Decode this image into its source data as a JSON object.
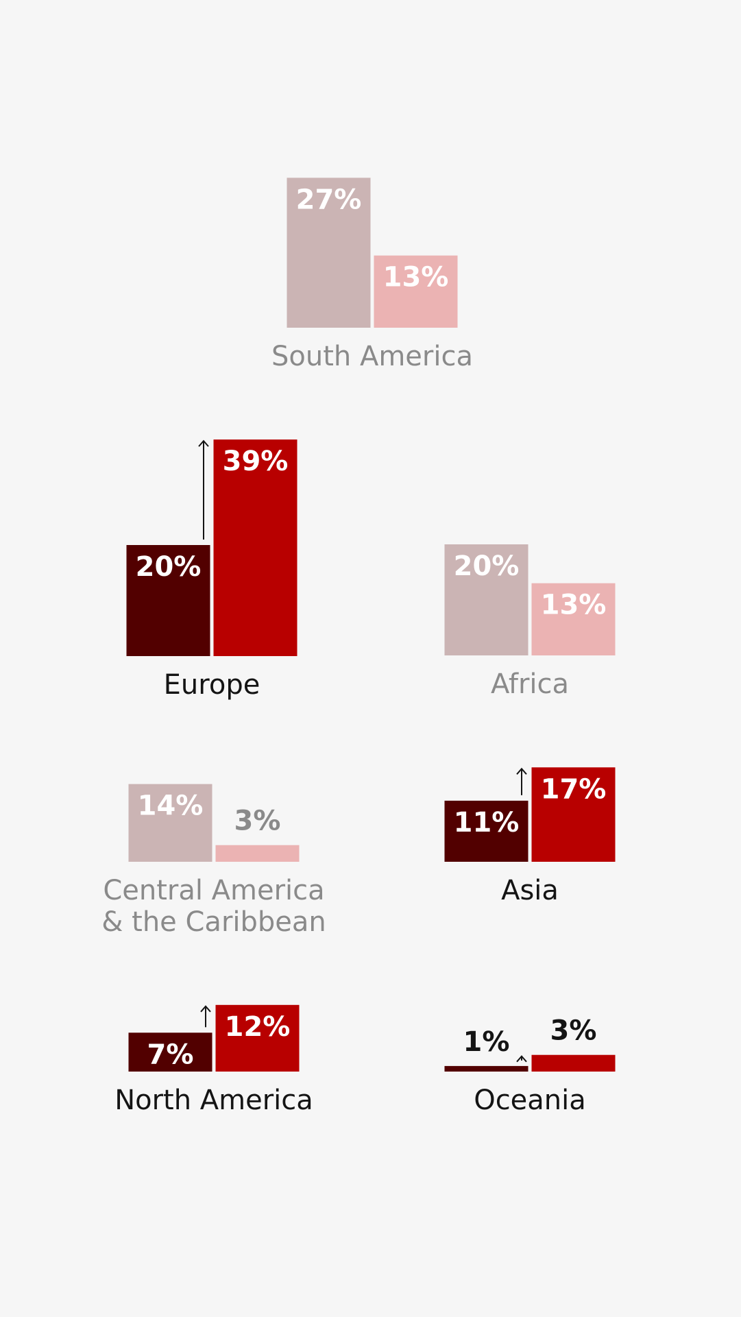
{
  "chart_data": {
    "type": "bar",
    "title": "",
    "value_unit": "%",
    "colors": {
      "highlight_before": "#520000",
      "highlight_after": "#b80000",
      "muted_before": "#cbb4b4",
      "muted_after": "#ebb3b3",
      "label_dark": "#141414",
      "label_muted": "#8a8a8a",
      "arrow": "#141414"
    },
    "regions": [
      {
        "name": "South America",
        "label_lines": [
          "South America"
        ],
        "values": [
          27,
          13
        ],
        "labels": [
          "27%",
          "13%"
        ],
        "highlighted": false,
        "increase": false
      },
      {
        "name": "Europe",
        "label_lines": [
          "Europe"
        ],
        "values": [
          20,
          39
        ],
        "labels": [
          "20%",
          "39%"
        ],
        "highlighted": true,
        "increase": true
      },
      {
        "name": "Africa",
        "label_lines": [
          "Africa"
        ],
        "values": [
          20,
          13
        ],
        "labels": [
          "20%",
          "13%"
        ],
        "highlighted": false,
        "increase": false
      },
      {
        "name": "Central America & the Caribbean",
        "label_lines": [
          "Central America",
          "& the Caribbean"
        ],
        "values": [
          14,
          3
        ],
        "labels": [
          "14%",
          "3%"
        ],
        "highlighted": false,
        "increase": false
      },
      {
        "name": "Asia",
        "label_lines": [
          "Asia"
        ],
        "values": [
          11,
          17
        ],
        "labels": [
          "11%",
          "17%"
        ],
        "highlighted": true,
        "increase": true
      },
      {
        "name": "North America",
        "label_lines": [
          "North America"
        ],
        "values": [
          7,
          12
        ],
        "labels": [
          "7%",
          "12%"
        ],
        "highlighted": true,
        "increase": true
      },
      {
        "name": "Oceania",
        "label_lines": [
          "Oceania"
        ],
        "values": [
          1,
          3
        ],
        "labels": [
          "1%",
          "3%"
        ],
        "highlighted": true,
        "increase": true
      }
    ]
  }
}
